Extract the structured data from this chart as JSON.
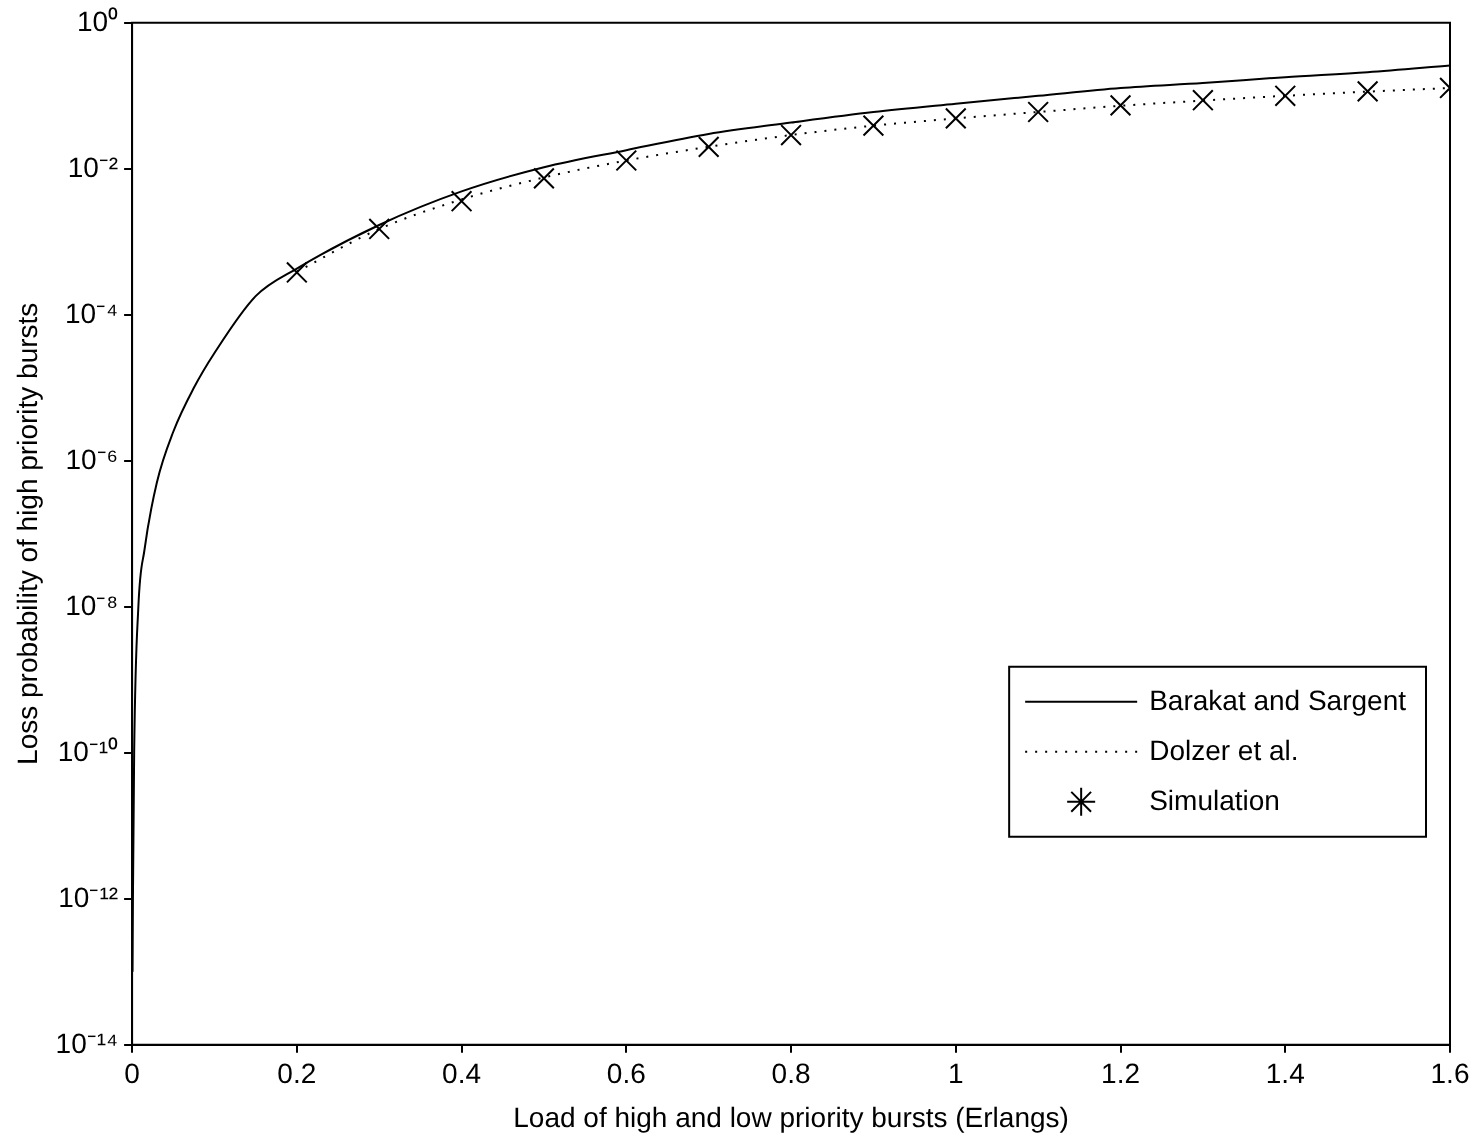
{
  "chart_data": {
    "type": "line",
    "xlabel": "Load of high and low priority bursts (Erlangs)",
    "ylabel": "Loss probability of high priority bursts",
    "log": "y",
    "grid": false,
    "legend": "bottom right",
    "xlim": [
      0,
      1.6
    ],
    "xticks": [
      0,
      0.2,
      0.4,
      0.6,
      0.8,
      1,
      1.2,
      1.4,
      1.6
    ],
    "ylim": [
      1e-14,
      1
    ],
    "yticks": [
      {
        "value": 1e-14,
        "label": "10⁻¹⁴"
      },
      {
        "value": 1e-12,
        "label": "10⁻¹²"
      },
      {
        "value": 1e-10,
        "label": "10⁻¹⁰"
      },
      {
        "value": 1e-08,
        "label": "10⁻⁸"
      },
      {
        "value": 1e-06,
        "label": "10⁻⁶"
      },
      {
        "value": 0.0001,
        "label": "10⁻⁴"
      },
      {
        "value": 0.01,
        "label": "10⁻²"
      },
      {
        "value": 1,
        "label": "10⁰"
      }
    ],
    "series": [
      {
        "name": "Barakat and Sargent",
        "color": "#000000",
        "line_style": "solid",
        "marker": "none",
        "x": [
          0.0005,
          0.001,
          0.0025,
          0.0076,
          0.015,
          0.03,
          0.05,
          0.075,
          0.1,
          0.15,
          0.2,
          0.3,
          0.4,
          0.5,
          0.6,
          0.7,
          0.8,
          0.9,
          1.0,
          1.1,
          1.2,
          1.3,
          1.4,
          1.5,
          1.6
        ],
        "values": [
          1e-13,
          1e-12,
          1e-10,
          1e-08,
          6e-08,
          5e-07,
          2.5e-06,
          1e-05,
          3e-05,
          0.00018,
          0.00043,
          0.0017,
          0.0049,
          0.0105,
          0.018,
          0.03,
          0.043,
          0.06,
          0.078,
          0.1,
          0.128,
          0.15,
          0.18,
          0.21,
          0.26
        ]
      },
      {
        "name": "Dolzer et al.",
        "color": "#000000",
        "line_style": "dotted",
        "marker": "none",
        "x": [
          0.2,
          0.3,
          0.4,
          0.5,
          0.6,
          0.7,
          0.8,
          0.9,
          1.0,
          1.1,
          1.2,
          1.3,
          1.4,
          1.5,
          1.6
        ],
        "values": [
          0.00039,
          0.0015,
          0.0038,
          0.0076,
          0.013,
          0.02,
          0.029,
          0.039,
          0.049,
          0.06,
          0.073,
          0.086,
          0.1,
          0.114,
          0.128
        ]
      },
      {
        "name": "Simulation",
        "type": "scatter",
        "color": "#000000",
        "marker": "cross",
        "x": [
          0.2,
          0.3,
          0.4,
          0.5,
          0.6,
          0.7,
          0.8,
          0.9,
          1.0,
          1.1,
          1.2,
          1.3,
          1.4,
          1.5,
          1.6
        ],
        "values": [
          0.00038,
          0.0015,
          0.0036,
          0.0074,
          0.013,
          0.02,
          0.029,
          0.039,
          0.049,
          0.06,
          0.074,
          0.087,
          0.1,
          0.115,
          0.128
        ]
      }
    ]
  }
}
